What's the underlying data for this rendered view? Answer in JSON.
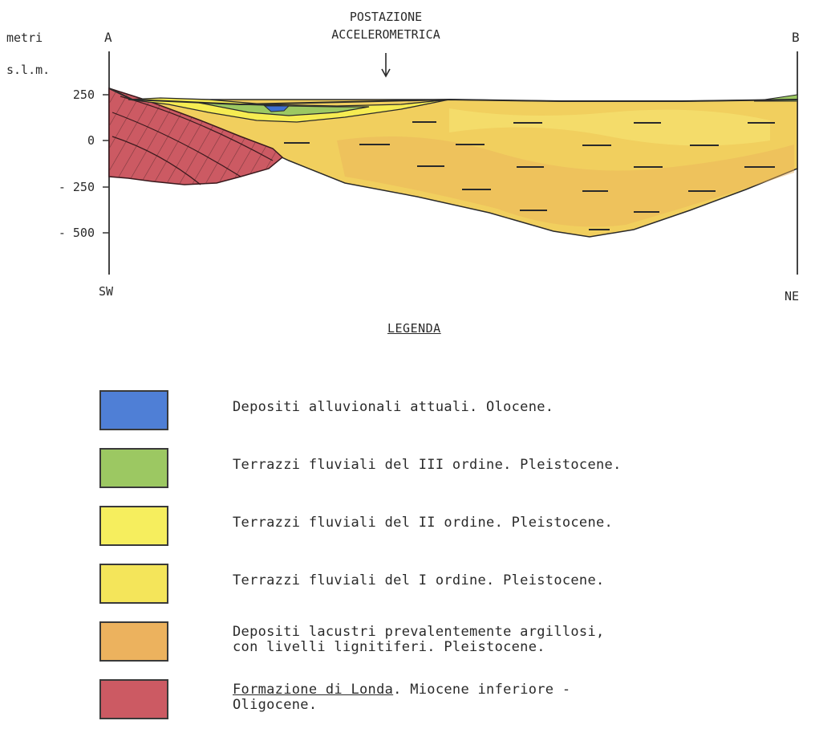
{
  "section": {
    "axis_title_line1": "metri",
    "axis_title_line2": "s.l.m.",
    "left_endpoint": "A",
    "right_endpoint": "B",
    "left_direction": "SW",
    "right_direction": "NE",
    "station_label_line1": "POSTAZIONE",
    "station_label_line2": "ACCELEROMETRICA",
    "station_arrow": "down-arrow",
    "elevation_ticks": [
      "250",
      "0",
      "- 250",
      "- 500"
    ]
  },
  "legend": {
    "title": "LEGENDA",
    "items": [
      {
        "label": "Depositi alluvionali attuali. Olocene.",
        "color": "#4f7fd6"
      },
      {
        "label": "Terrazzi fluviali del III ordine. Pleistocene.",
        "color": "#9cc862"
      },
      {
        "label": "Terrazzi fluviali del II ordine. Pleistocene.",
        "color": "#f6ee5e"
      },
      {
        "label": "Terrazzi fluviali del I ordine. Pleistocene.",
        "color": "#f4e55a"
      },
      {
        "label": "Depositi lacustri prevalentemente argillosi,\ncon livelli lignitiferi. Pleistocene.",
        "color": "#ecb25e"
      },
      {
        "label_underlined": "Formazione di Londa",
        "label_rest": ". Miocene inferiore -\nOligocene.",
        "color": "#cc5a63"
      }
    ]
  }
}
